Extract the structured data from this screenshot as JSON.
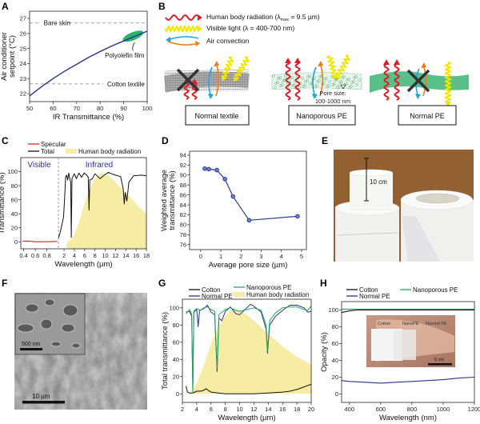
{
  "panel_labels": {
    "A": "A",
    "B": "B",
    "C": "C",
    "D": "D",
    "E": "E",
    "F": "F",
    "G": "G",
    "H": "H"
  },
  "colors": {
    "navy": "#2b3190",
    "green": "#22a85c",
    "red": "#e01e25",
    "yellow": "#f2e600",
    "yellow_fill": "#f7eca3",
    "orange": "#f07a1d",
    "blue": "#1ea3e0",
    "black": "#111111"
  },
  "panel_b": {
    "legend": [
      {
        "icon": "red-wavy-arrow-icon",
        "text_pre": "Human body radiation (λ",
        "text_sub": "max",
        "text_post": " = 9.5 µm)"
      },
      {
        "icon": "yellow-wavy-arrow-icon",
        "text_pre": "Visible light (λ = 400-700 nm)",
        "text_sub": "",
        "text_post": ""
      },
      {
        "icon": "convection-arrows-icon",
        "text_pre": "Air convection",
        "text_sub": "",
        "text_post": ""
      }
    ],
    "materials": [
      "Normal textile",
      "Nanoporous PE",
      "Normal PE"
    ],
    "pore_label_1": "Pore size:",
    "pore_label_2": "100-1000 nm"
  },
  "panel_e": {
    "scale_label": "10 cm"
  },
  "panel_f": {
    "inset_scale": "500 nm",
    "main_scale": "10 µm"
  },
  "chart_data": [
    {
      "id": "A",
      "type": "line",
      "xlabel": "IR Transmittance (%)",
      "ylabel_lines": [
        "Air conditioner",
        "setpoint (°C)"
      ],
      "xlim": [
        50,
        100
      ],
      "ylim": [
        21.47,
        27.48
      ],
      "xticks": [
        50,
        60,
        70,
        80,
        90,
        100
      ],
      "yticks": [
        22,
        23,
        24,
        25,
        26,
        27
      ],
      "series": [
        {
          "color": "#2b3190",
          "points": [
            [
              50,
              21.85
            ],
            [
              55,
              22.45
            ],
            [
              60,
              23.0
            ],
            [
              65,
              23.5
            ],
            [
              70,
              23.95
            ],
            [
              75,
              24.4
            ],
            [
              80,
              24.8
            ],
            [
              85,
              25.17
            ],
            [
              90,
              25.5
            ],
            [
              95,
              25.83
            ],
            [
              100,
              26.15
            ]
          ]
        }
      ],
      "reference_lines": [
        {
          "label": "Bare skin",
          "y": 26.7
        },
        {
          "label": "Cotton textile",
          "y": 22.65
        }
      ],
      "annotation": {
        "label": "Polyolefin film",
        "x_range": [
          90,
          98
        ]
      }
    },
    {
      "id": "C",
      "type": "area+line",
      "xlabel": "Wavelength (µm)",
      "ylabel": "Transmittance (%)",
      "xlim_visible": [
        0.35,
        1.0
      ],
      "xlim_infrared": [
        0.9,
        18
      ],
      "ylim": [
        -10,
        120
      ],
      "xticks_visible": [
        0.4,
        0.6,
        0.8
      ],
      "xticks_infrared": [
        2,
        4,
        6,
        8,
        10,
        12,
        14,
        16,
        18
      ],
      "yticks": [
        0,
        20,
        40,
        60,
        80,
        100
      ],
      "region_labels": [
        "Visible",
        "Infrared"
      ],
      "series": [
        {
          "name": "Specular",
          "color": "#e01e25",
          "points": [
            [
              0.38,
              1
            ],
            [
              0.5,
              1
            ],
            [
              0.6,
              0
            ],
            [
              0.8,
              0
            ],
            [
              0.98,
              0.5
            ]
          ]
        },
        {
          "name": "Total",
          "color": "#111111",
          "points": [
            [
              0.92,
              5
            ],
            [
              1.3,
              15
            ],
            [
              1.6,
              25
            ],
            [
              1.9,
              35
            ],
            [
              2.1,
              60
            ],
            [
              2.3,
              92
            ],
            [
              2.5,
              95
            ],
            [
              2.7,
              88
            ],
            [
              2.9,
              98
            ],
            [
              3.1,
              90
            ],
            [
              3.3,
              85
            ],
            [
              3.4,
              6
            ],
            [
              3.55,
              90
            ],
            [
              4,
              97
            ],
            [
              4.4,
              90
            ],
            [
              4.9,
              98
            ],
            [
              5.4,
              92
            ],
            [
              5.9,
              98
            ],
            [
              6.4,
              95
            ],
            [
              6.7,
              92
            ],
            [
              6.85,
              45
            ],
            [
              7.0,
              88
            ],
            [
              7.5,
              90
            ],
            [
              8,
              97
            ],
            [
              9,
              90
            ],
            [
              10,
              96
            ],
            [
              10.6,
              99
            ],
            [
              11.2,
              97
            ],
            [
              12,
              95
            ],
            [
              13,
              93
            ],
            [
              13.5,
              75
            ],
            [
              13.7,
              54
            ],
            [
              13.9,
              70
            ],
            [
              14.2,
              58
            ],
            [
              14.6,
              85
            ],
            [
              15.5,
              94
            ],
            [
              17,
              95
            ],
            [
              18,
              94
            ]
          ]
        },
        {
          "name": "Human body radiation",
          "color": "#f7eca3",
          "points": [
            [
              2.5,
              0
            ],
            [
              3,
              1
            ],
            [
              3.5,
              4
            ],
            [
              4,
              10
            ],
            [
              5,
              30
            ],
            [
              6,
              55
            ],
            [
              7,
              76
            ],
            [
              8,
              90
            ],
            [
              9,
              97
            ],
            [
              9.5,
              98
            ],
            [
              10,
              97
            ],
            [
              11,
              92
            ],
            [
              12,
              85
            ],
            [
              14,
              70
            ],
            [
              16,
              54
            ],
            [
              18,
              40
            ]
          ]
        }
      ]
    },
    {
      "id": "D",
      "type": "line+scatter",
      "xlabel": "Average pore size (µm)",
      "ylabel_lines": [
        "Weighted average",
        "transmittance (%)"
      ],
      "xlim": [
        -0.55,
        5.24
      ],
      "ylim": [
        75,
        94.8
      ],
      "xticks": [
        0,
        1,
        2,
        3,
        4,
        5
      ],
      "yticks": [
        76,
        78,
        80,
        82,
        84,
        86,
        88,
        90,
        92,
        94
      ],
      "series": [
        {
          "color": "#2b3d9a",
          "points": [
            [
              0.2,
              91.3
            ],
            [
              0.4,
              91.2
            ],
            [
              0.8,
              91.0
            ],
            [
              1.2,
              89.2
            ],
            [
              1.6,
              85.7
            ],
            [
              2.4,
              80.9
            ],
            [
              4.8,
              81.7
            ]
          ]
        }
      ]
    },
    {
      "id": "G",
      "type": "area+line",
      "xlabel": "Wavelength (µm)",
      "ylabel": "Total transmittance (%)",
      "xlim": [
        2,
        20
      ],
      "ylim": [
        -10,
        110
      ],
      "xticks": [
        2,
        4,
        6,
        8,
        10,
        12,
        14,
        16,
        18,
        20
      ],
      "yticks": [
        0,
        20,
        40,
        60,
        80,
        100
      ],
      "series": [
        {
          "name": "Human body radiation",
          "color": "#f7eca3",
          "points": [
            [
              2.5,
              0
            ],
            [
              3,
              1
            ],
            [
              3.5,
              4
            ],
            [
              4,
              12
            ],
            [
              5,
              33
            ],
            [
              6,
              58
            ],
            [
              7,
              78
            ],
            [
              8,
              91
            ],
            [
              8.8,
              97
            ],
            [
              9.5,
              98
            ],
            [
              10,
              97
            ],
            [
              11,
              92
            ],
            [
              12,
              85
            ],
            [
              14,
              70
            ],
            [
              16,
              55
            ],
            [
              18,
              43
            ],
            [
              20,
              34
            ]
          ]
        },
        {
          "name": "Cotton",
          "color": "#111111",
          "points": [
            [
              2.5,
              9
            ],
            [
              2.7,
              2
            ],
            [
              3,
              1
            ],
            [
              3.5,
              1
            ],
            [
              4,
              3
            ],
            [
              4.5,
              3
            ],
            [
              5,
              4
            ],
            [
              5.3,
              6
            ],
            [
              5.6,
              4
            ],
            [
              6,
              2
            ],
            [
              7,
              1
            ],
            [
              8,
              0
            ],
            [
              10,
              0
            ],
            [
              12,
              0
            ],
            [
              14,
              1
            ],
            [
              16,
              2
            ],
            [
              17,
              3
            ],
            [
              18,
              5
            ],
            [
              19,
              8
            ],
            [
              20,
              11
            ]
          ]
        },
        {
          "name": "Normal PE",
          "color": "#2b3190",
          "points": [
            [
              2.5,
              95
            ],
            [
              3,
              96
            ],
            [
              3.3,
              90
            ],
            [
              3.45,
              2
            ],
            [
              3.6,
              95
            ],
            [
              4,
              98
            ],
            [
              4.2,
              78
            ],
            [
              4.4,
              97
            ],
            [
              5,
              99
            ],
            [
              5.5,
              103
            ],
            [
              6,
              95
            ],
            [
              6.5,
              92
            ],
            [
              6.85,
              26
            ],
            [
              7.1,
              88
            ],
            [
              7.5,
              85
            ],
            [
              8,
              96
            ],
            [
              8.7,
              101
            ],
            [
              9.5,
              93
            ],
            [
              10,
              92
            ],
            [
              11,
              100
            ],
            [
              11.5,
              104
            ],
            [
              12,
              102
            ],
            [
              13,
              95
            ],
            [
              13.7,
              75
            ],
            [
              13.9,
              47
            ],
            [
              14.2,
              80
            ],
            [
              15,
              90
            ],
            [
              16,
              97
            ],
            [
              17,
              103
            ],
            [
              18,
              103
            ],
            [
              19,
              100
            ],
            [
              19.5,
              95
            ],
            [
              20,
              96
            ]
          ]
        },
        {
          "name": "Nanoporous PE",
          "color": "#22a85c",
          "points": [
            [
              2.5,
              93
            ],
            [
              3,
              98
            ],
            [
              3.3,
              93
            ],
            [
              3.45,
              1
            ],
            [
              3.6,
              96
            ],
            [
              4,
              99
            ],
            [
              4.5,
              97
            ],
            [
              5,
              100
            ],
            [
              5.5,
              101
            ],
            [
              6,
              98
            ],
            [
              6.5,
              96
            ],
            [
              6.85,
              30
            ],
            [
              7.1,
              92
            ],
            [
              8,
              98
            ],
            [
              8.7,
              100
            ],
            [
              9.5,
              97
            ],
            [
              10,
              96
            ],
            [
              11,
              98
            ],
            [
              12,
              100
            ],
            [
              13,
              97
            ],
            [
              13.7,
              80
            ],
            [
              13.9,
              50
            ],
            [
              14.2,
              85
            ],
            [
              15,
              94
            ],
            [
              16,
              100
            ],
            [
              17,
              101
            ],
            [
              18,
              101
            ],
            [
              19,
              98
            ],
            [
              19.5,
              97
            ],
            [
              20,
              102
            ]
          ]
        }
      ]
    },
    {
      "id": "H",
      "type": "line",
      "xlabel": "Wavelength (nm)",
      "ylabel": "Opacity (%)",
      "xlim": [
        350,
        1200
      ],
      "ylim": [
        -10,
        110
      ],
      "xticks": [
        400,
        600,
        800,
        1000,
        1200
      ],
      "yticks": [
        0,
        20,
        40,
        60,
        80,
        100
      ],
      "series": [
        {
          "name": "Cotton",
          "color": "#111111",
          "points": [
            [
              350,
              97
            ],
            [
              400,
              99
            ],
            [
              450,
              100
            ],
            [
              1200,
              100
            ]
          ]
        },
        {
          "name": "Normal PE",
          "color": "#2b3190",
          "points": [
            [
              350,
              16
            ],
            [
              400,
              15
            ],
            [
              500,
              14
            ],
            [
              600,
              13
            ],
            [
              700,
              14
            ],
            [
              800,
              15
            ],
            [
              900,
              16
            ],
            [
              1000,
              17
            ],
            [
              1100,
              19
            ],
            [
              1200,
              20
            ]
          ]
        },
        {
          "name": "Nanoporous PE",
          "color": "#22a85c",
          "points": [
            [
              350,
              101
            ],
            [
              1200,
              101
            ]
          ]
        }
      ],
      "inset_labels": [
        "Cotton",
        "NanoPE",
        "Normal PE"
      ],
      "inset_scale": "5 cm"
    }
  ]
}
